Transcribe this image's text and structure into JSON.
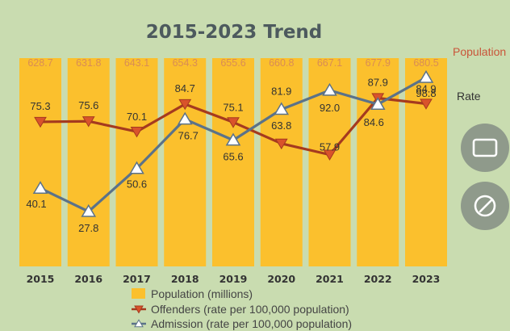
{
  "chart_data": {
    "type": "bar+line",
    "title": "2015-2023 Trend",
    "categories": [
      "2015",
      "2016",
      "2017",
      "2018",
      "2019",
      "2020",
      "2021",
      "2022",
      "2023"
    ],
    "bars": {
      "name": "Population (millions)",
      "label": "Population",
      "values": [
        628.7,
        631.8,
        643.1,
        654.3,
        655.6,
        660.8,
        667.1,
        677.9,
        680.5
      ],
      "color": "#fbc02d"
    },
    "rate_label": "Rate",
    "series": [
      {
        "name": "Offenders (rate per 100,000 population)",
        "values": [
          75.3,
          75.6,
          70.1,
          84.7,
          75.1,
          63.8,
          57.9,
          87.9,
          84.9
        ],
        "labels": [
          "75.3",
          "75.6",
          "70.1",
          "84.7",
          "75.1",
          "63.8",
          "57.9",
          "87.9",
          "84.9"
        ],
        "color": "#a53a1f",
        "marker": "triangle-down"
      },
      {
        "name": "Admission (rate per 100,000 population)",
        "values": [
          40.1,
          27.8,
          50.6,
          76.7,
          65.6,
          81.9,
          92.0,
          84.6,
          98.8
        ],
        "labels": [
          "40.1",
          "27.8",
          "50.6",
          "76.7",
          "65.6",
          "81.9",
          "92.0",
          "84.6",
          "98.8"
        ],
        "color": "#5b7289",
        "marker": "triangle-up"
      }
    ],
    "legend_position": "bottom",
    "grid": false
  },
  "colors": {
    "background": "#c9dcb0",
    "population_label": "#c9553a",
    "rate_label": "#333333"
  },
  "icons": [
    "screen-icon",
    "edit-icon"
  ]
}
